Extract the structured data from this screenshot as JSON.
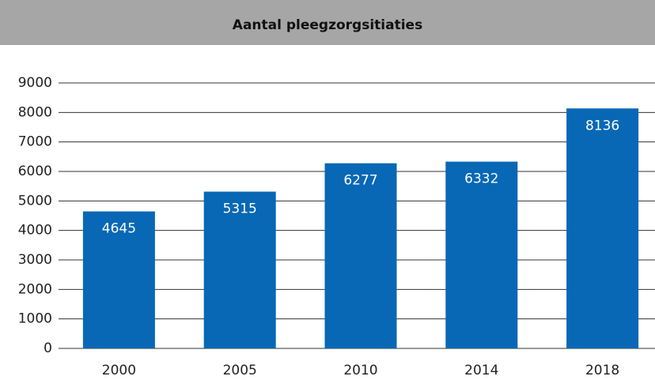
{
  "chart_data": {
    "type": "bar",
    "title": "Aantal pleegzorgsitiaties",
    "categories": [
      "2000",
      "2005",
      "2010",
      "2014",
      "2018"
    ],
    "values": [
      4645,
      5315,
      6277,
      6332,
      8136
    ],
    "color": "#0868b5",
    "ylim": [
      0,
      9000
    ],
    "yticks": [
      0,
      1000,
      2000,
      3000,
      4000,
      5000,
      6000,
      7000,
      8000,
      9000
    ],
    "grid": true
  }
}
